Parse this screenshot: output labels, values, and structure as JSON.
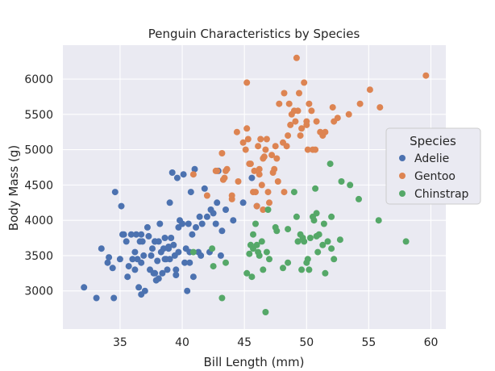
{
  "chart_data": {
    "type": "scatter",
    "title": "Penguin Characteristics by Species",
    "xlabel": "Bill Length (mm)",
    "ylabel": "Body Mass (g)",
    "xlim": [
      30.4,
      61.2
    ],
    "ylim": [
      2460,
      6480
    ],
    "xticks": [
      35,
      40,
      45,
      50,
      55,
      60
    ],
    "yticks": [
      3000,
      3500,
      4000,
      4500,
      5000,
      5500,
      6000
    ],
    "grid": true,
    "legend_title": "Species",
    "legend_position": "right",
    "series": [
      {
        "name": "Adelie",
        "color": "#4C72B0",
        "points": [
          [
            32.1,
            3050
          ],
          [
            33.1,
            2900
          ],
          [
            33.5,
            3600
          ],
          [
            34.0,
            3400
          ],
          [
            34.1,
            3475
          ],
          [
            34.4,
            3325
          ],
          [
            34.6,
            4400
          ],
          [
            35.0,
            3450
          ],
          [
            34.5,
            2900
          ],
          [
            35.1,
            4200
          ],
          [
            35.2,
            3800
          ],
          [
            35.3,
            3800
          ],
          [
            35.5,
            3700
          ],
          [
            35.6,
            3200
          ],
          [
            35.7,
            3350
          ],
          [
            35.9,
            3800
          ],
          [
            36.0,
            3450
          ],
          [
            36.2,
            3550
          ],
          [
            36.2,
            3300
          ],
          [
            36.3,
            3800
          ],
          [
            36.4,
            3450
          ],
          [
            36.5,
            3050
          ],
          [
            36.6,
            3700
          ],
          [
            36.7,
            3800
          ],
          [
            36.7,
            3400
          ],
          [
            36.8,
            3700
          ],
          [
            36.9,
            3500
          ],
          [
            37.0,
            3000
          ],
          [
            37.2,
            3900
          ],
          [
            37.3,
            3775
          ],
          [
            37.4,
            3300
          ],
          [
            37.5,
            3500
          ],
          [
            37.6,
            3600
          ],
          [
            37.7,
            3250
          ],
          [
            37.8,
            3700
          ],
          [
            37.9,
            3150
          ],
          [
            38.0,
            3425
          ],
          [
            38.1,
            3175
          ],
          [
            38.1,
            3700
          ],
          [
            38.2,
            3950
          ],
          [
            38.3,
            3550
          ],
          [
            38.4,
            3250
          ],
          [
            38.5,
            3600
          ],
          [
            38.6,
            3750
          ],
          [
            38.7,
            3450
          ],
          [
            38.8,
            3300
          ],
          [
            38.9,
            3600
          ],
          [
            39.0,
            3450
          ],
          [
            39.1,
            3750
          ],
          [
            39.2,
            4675
          ],
          [
            39.3,
            3650
          ],
          [
            39.4,
            3500
          ],
          [
            39.5,
            3300
          ],
          [
            39.6,
            4600
          ],
          [
            39.7,
            3550
          ],
          [
            39.8,
            4000
          ],
          [
            40.0,
            3950
          ],
          [
            40.1,
            4650
          ],
          [
            40.2,
            3400
          ],
          [
            40.3,
            3600
          ],
          [
            40.4,
            3000
          ],
          [
            40.5,
            3950
          ],
          [
            40.6,
            3550
          ],
          [
            40.7,
            4400
          ],
          [
            40.8,
            3800
          ],
          [
            40.9,
            3200
          ],
          [
            41.0,
            4725
          ],
          [
            41.1,
            3900
          ],
          [
            41.3,
            3550
          ],
          [
            41.4,
            4050
          ],
          [
            41.5,
            3500
          ],
          [
            41.6,
            3950
          ],
          [
            41.8,
            4450
          ],
          [
            42.0,
            4050
          ],
          [
            42.2,
            3550
          ],
          [
            42.3,
            4150
          ],
          [
            42.5,
            4100
          ],
          [
            42.7,
            3950
          ],
          [
            42.8,
            4250
          ],
          [
            42.9,
            4700
          ],
          [
            43.1,
            3500
          ],
          [
            43.2,
            3850
          ],
          [
            43.5,
            4150
          ],
          [
            44.1,
            4000
          ],
          [
            44.9,
            4250
          ],
          [
            45.6,
            4600
          ],
          [
            46.0,
            4200
          ],
          [
            37.8,
            3700
          ],
          [
            39.5,
            3225
          ],
          [
            38.9,
            3625
          ],
          [
            36.7,
            2950
          ],
          [
            39.0,
            4250
          ],
          [
            40.6,
            3400
          ],
          [
            37.8,
            3250
          ],
          [
            38.6,
            3450
          ],
          [
            39.7,
            3900
          ]
        ]
      },
      {
        "name": "Gentoo",
        "color": "#DD8452",
        "points": [
          [
            40.9,
            4650
          ],
          [
            42.0,
            4350
          ],
          [
            42.7,
            4700
          ],
          [
            42.8,
            4700
          ],
          [
            43.2,
            4950
          ],
          [
            43.3,
            4575
          ],
          [
            43.5,
            4700
          ],
          [
            43.6,
            4725
          ],
          [
            44.0,
            4350
          ],
          [
            44.4,
            5250
          ],
          [
            44.5,
            4550
          ],
          [
            44.9,
            5100
          ],
          [
            45.1,
            5000
          ],
          [
            45.2,
            5300
          ],
          [
            45.3,
            5150
          ],
          [
            45.4,
            4800
          ],
          [
            45.5,
            4800
          ],
          [
            45.7,
            4400
          ],
          [
            45.8,
            4700
          ],
          [
            46.1,
            5050
          ],
          [
            46.2,
            4650
          ],
          [
            46.3,
            5150
          ],
          [
            46.4,
            4500
          ],
          [
            46.5,
            4875
          ],
          [
            46.6,
            4900
          ],
          [
            46.7,
            5000
          ],
          [
            46.8,
            5150
          ],
          [
            46.9,
            4400
          ],
          [
            47.2,
            4925
          ],
          [
            47.3,
            4675
          ],
          [
            47.4,
            4725
          ],
          [
            47.5,
            5050
          ],
          [
            47.6,
            4875
          ],
          [
            47.7,
            4550
          ],
          [
            47.8,
            5650
          ],
          [
            48.1,
            5100
          ],
          [
            48.2,
            4400
          ],
          [
            48.4,
            5050
          ],
          [
            48.5,
            5200
          ],
          [
            48.6,
            5650
          ],
          [
            48.7,
            5350
          ],
          [
            48.8,
            5500
          ],
          [
            49.0,
            5550
          ],
          [
            49.1,
            5400
          ],
          [
            49.2,
            6300
          ],
          [
            49.3,
            5550
          ],
          [
            49.4,
            5800
          ],
          [
            49.5,
            5200
          ],
          [
            49.6,
            5300
          ],
          [
            49.8,
            5950
          ],
          [
            50.0,
            5400
          ],
          [
            50.1,
            5000
          ],
          [
            50.2,
            5650
          ],
          [
            50.4,
            5550
          ],
          [
            50.5,
            5000
          ],
          [
            50.7,
            5000
          ],
          [
            50.8,
            5400
          ],
          [
            51.1,
            5250
          ],
          [
            51.3,
            5200
          ],
          [
            51.5,
            5250
          ],
          [
            52.1,
            5600
          ],
          [
            52.2,
            5400
          ],
          [
            52.5,
            5450
          ],
          [
            53.4,
            5500
          ],
          [
            54.3,
            5650
          ],
          [
            55.1,
            5850
          ],
          [
            55.9,
            5600
          ],
          [
            59.6,
            6050
          ],
          [
            45.2,
            5950
          ],
          [
            48.2,
            5800
          ],
          [
            50.0,
            5350
          ],
          [
            46.2,
            4725
          ],
          [
            43.4,
            4600
          ],
          [
            46.0,
            4200
          ],
          [
            44.0,
            4300
          ],
          [
            46.5,
            4150
          ],
          [
            47.0,
            4250
          ],
          [
            45.9,
            4400
          ]
        ]
      },
      {
        "name": "Chinstrap",
        "color": "#55A868",
        "points": [
          [
            40.9,
            3550
          ],
          [
            42.4,
            3600
          ],
          [
            42.5,
            3350
          ],
          [
            43.2,
            2900
          ],
          [
            43.5,
            3400
          ],
          [
            45.2,
            3250
          ],
          [
            45.4,
            3525
          ],
          [
            45.5,
            3650
          ],
          [
            45.6,
            3200
          ],
          [
            45.7,
            3800
          ],
          [
            45.9,
            3950
          ],
          [
            46.0,
            3650
          ],
          [
            46.1,
            3550
          ],
          [
            46.2,
            3500
          ],
          [
            46.4,
            3700
          ],
          [
            46.5,
            3300
          ],
          [
            46.7,
            2700
          ],
          [
            46.8,
            3550
          ],
          [
            47.0,
            3450
          ],
          [
            47.5,
            3900
          ],
          [
            47.6,
            3850
          ],
          [
            48.1,
            3325
          ],
          [
            48.5,
            3400
          ],
          [
            49.0,
            4400
          ],
          [
            49.2,
            4050
          ],
          [
            49.3,
            3700
          ],
          [
            49.5,
            3800
          ],
          [
            49.6,
            3300
          ],
          [
            49.7,
            3750
          ],
          [
            50.0,
            3400
          ],
          [
            50.1,
            3450
          ],
          [
            50.2,
            3300
          ],
          [
            50.3,
            3750
          ],
          [
            50.5,
            4050
          ],
          [
            50.6,
            4000
          ],
          [
            50.7,
            4450
          ],
          [
            50.8,
            4100
          ],
          [
            51.0,
            3800
          ],
          [
            51.3,
            3650
          ],
          [
            51.4,
            3950
          ],
          [
            51.5,
            3250
          ],
          [
            51.7,
            3700
          ],
          [
            51.9,
            4800
          ],
          [
            52.0,
            4050
          ],
          [
            52.2,
            3450
          ],
          [
            52.7,
            3725
          ],
          [
            52.8,
            4550
          ],
          [
            53.5,
            4500
          ],
          [
            54.2,
            4300
          ],
          [
            55.8,
            4000
          ],
          [
            58.0,
            3700
          ],
          [
            50.9,
            3550
          ],
          [
            49.8,
            3700
          ],
          [
            48.5,
            3875
          ],
          [
            46.9,
            4150
          ],
          [
            45.7,
            3600
          ],
          [
            50.8,
            3775
          ],
          [
            52.0,
            3600
          ]
        ]
      }
    ]
  }
}
